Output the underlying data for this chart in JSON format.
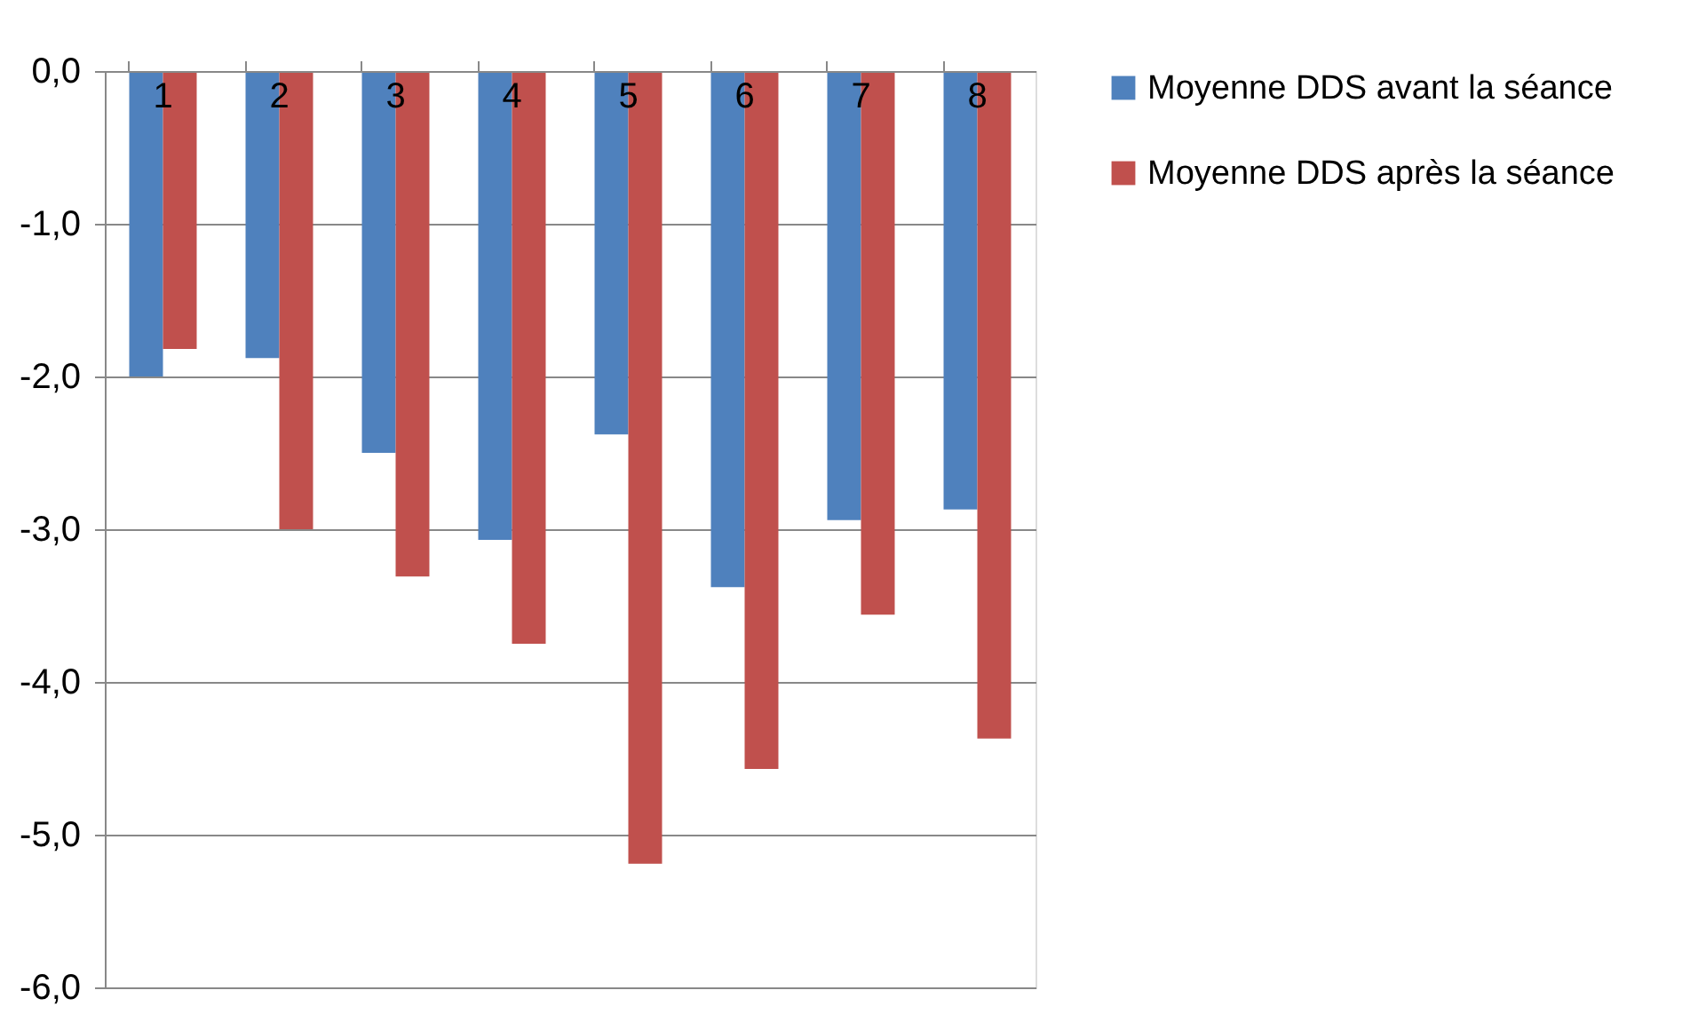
{
  "chart_data": {
    "type": "bar",
    "categories": [
      "1",
      "2",
      "3",
      "4",
      "5",
      "6",
      "7",
      "8"
    ],
    "series": [
      {
        "name": "Moyenne DDS avant la séance",
        "color": "#4f81bd",
        "values": [
          -2.0,
          -1.88,
          -2.5,
          -3.07,
          -2.38,
          -3.38,
          -2.94,
          -2.87
        ]
      },
      {
        "name": "Moyenne DDS après la séance",
        "color": "#c0504d",
        "values": [
          -1.82,
          -3.0,
          -3.31,
          -3.75,
          -5.19,
          -4.57,
          -3.56,
          -4.37
        ]
      }
    ],
    "ylim": [
      -6,
      0
    ],
    "yticks": [
      {
        "value": 0,
        "label": "0,0"
      },
      {
        "value": -1,
        "label": "-1,0"
      },
      {
        "value": -2,
        "label": "-2,0"
      },
      {
        "value": -3,
        "label": "-3,0"
      },
      {
        "value": -4,
        "label": "-4,0"
      },
      {
        "value": -5,
        "label": "-5,0"
      },
      {
        "value": -6,
        "label": "-6,0"
      }
    ],
    "grid": "y",
    "legend": "right"
  }
}
